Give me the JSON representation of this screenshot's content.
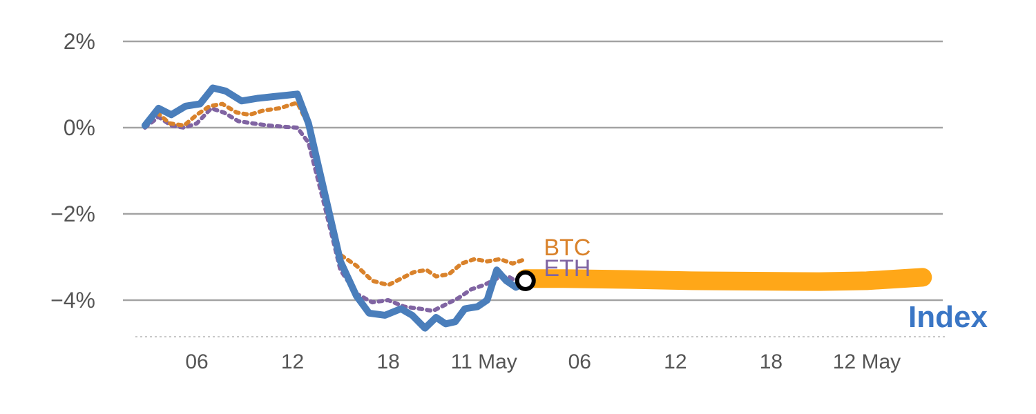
{
  "chart_data": {
    "type": "line",
    "title": "",
    "xlabel": "",
    "ylabel": "",
    "grid": "horizontal",
    "legend_position": "inline-annotations",
    "ylim": [
      -5.2,
      2.4
    ],
    "xlim_t_hours": [
      2.75,
      51.5
    ],
    "y_ticks": [
      {
        "label": "2%",
        "value": 2
      },
      {
        "label": "0%",
        "value": 0
      },
      {
        "label": "−2%",
        "value": -2
      },
      {
        "label": "−4%",
        "value": -4
      }
    ],
    "x_ticks": [
      {
        "label": "06",
        "t": 6
      },
      {
        "label": "12",
        "t": 12
      },
      {
        "label": "18",
        "t": 18
      },
      {
        "label": "11 May",
        "t": 24
      },
      {
        "label": "06",
        "t": 30
      },
      {
        "label": "12",
        "t": 36
      },
      {
        "label": "18",
        "t": 42
      },
      {
        "label": "12 May",
        "t": 48
      }
    ],
    "series": [
      {
        "name": "index-projection-band",
        "color": "#FFA718",
        "style": "solid",
        "width": 27,
        "points": [
          [
            26.6,
            -3.5
          ],
          [
            29,
            -3.5
          ],
          [
            33,
            -3.52
          ],
          [
            37,
            -3.55
          ],
          [
            41,
            -3.56
          ],
          [
            45,
            -3.57
          ],
          [
            48,
            -3.55
          ],
          [
            51.5,
            -3.47
          ]
        ]
      },
      {
        "name": "ETH",
        "color": "#8064A2",
        "style": "dotted",
        "width": 6,
        "points": [
          [
            2.75,
            0.0
          ],
          [
            3.6,
            0.25
          ],
          [
            4.4,
            0.05
          ],
          [
            5.2,
            0.0
          ],
          [
            6.0,
            0.1
          ],
          [
            6.9,
            0.45
          ],
          [
            7.7,
            0.35
          ],
          [
            8.6,
            0.15
          ],
          [
            9.5,
            0.1
          ],
          [
            10.5,
            0.05
          ],
          [
            11.5,
            0.02
          ],
          [
            12.3,
            0.0
          ],
          [
            13.0,
            -0.35
          ],
          [
            14.0,
            -1.8
          ],
          [
            15.0,
            -3.3
          ],
          [
            16.0,
            -3.85
          ],
          [
            17.0,
            -4.05
          ],
          [
            18.0,
            -4.0
          ],
          [
            19.0,
            -4.15
          ],
          [
            20.0,
            -4.2
          ],
          [
            20.8,
            -4.25
          ],
          [
            21.6,
            -4.1
          ],
          [
            22.4,
            -3.95
          ],
          [
            23.2,
            -3.75
          ],
          [
            24.0,
            -3.65
          ],
          [
            24.8,
            -3.5
          ],
          [
            25.5,
            -3.45
          ],
          [
            26.0,
            -3.55
          ],
          [
            26.6,
            -3.5
          ]
        ]
      },
      {
        "name": "BTC",
        "color": "#D9822B",
        "style": "dotted",
        "width": 6,
        "points": [
          [
            2.75,
            0.1
          ],
          [
            3.5,
            0.35
          ],
          [
            4.3,
            0.1
          ],
          [
            5.2,
            0.05
          ],
          [
            6.0,
            0.3
          ],
          [
            6.8,
            0.5
          ],
          [
            7.6,
            0.55
          ],
          [
            8.5,
            0.35
          ],
          [
            9.3,
            0.3
          ],
          [
            10.2,
            0.4
          ],
          [
            11.2,
            0.45
          ],
          [
            12.3,
            0.58
          ],
          [
            13.0,
            0.05
          ],
          [
            14.0,
            -1.6
          ],
          [
            15.0,
            -2.95
          ],
          [
            16.0,
            -3.2
          ],
          [
            17.0,
            -3.55
          ],
          [
            18.0,
            -3.65
          ],
          [
            18.8,
            -3.5
          ],
          [
            19.6,
            -3.35
          ],
          [
            20.4,
            -3.3
          ],
          [
            21.0,
            -3.45
          ],
          [
            21.8,
            -3.4
          ],
          [
            22.6,
            -3.15
          ],
          [
            23.4,
            -3.05
          ],
          [
            24.2,
            -3.1
          ],
          [
            25.0,
            -3.05
          ],
          [
            25.8,
            -3.15
          ],
          [
            26.6,
            -3.05
          ]
        ]
      },
      {
        "name": "Index",
        "color": "#4A7EBB",
        "style": "solid",
        "width": 10,
        "points": [
          [
            2.75,
            0.05
          ],
          [
            3.6,
            0.45
          ],
          [
            4.4,
            0.3
          ],
          [
            5.3,
            0.5
          ],
          [
            6.2,
            0.55
          ],
          [
            7.0,
            0.92
          ],
          [
            7.8,
            0.85
          ],
          [
            8.8,
            0.62
          ],
          [
            9.8,
            0.68
          ],
          [
            10.8,
            0.72
          ],
          [
            11.6,
            0.75
          ],
          [
            12.3,
            0.78
          ],
          [
            13.0,
            0.1
          ],
          [
            14.0,
            -1.5
          ],
          [
            15.0,
            -3.1
          ],
          [
            16.0,
            -3.9
          ],
          [
            16.8,
            -4.3
          ],
          [
            17.8,
            -4.35
          ],
          [
            18.8,
            -4.2
          ],
          [
            19.5,
            -4.35
          ],
          [
            20.3,
            -4.65
          ],
          [
            21.0,
            -4.4
          ],
          [
            21.6,
            -4.55
          ],
          [
            22.2,
            -4.5
          ],
          [
            22.8,
            -4.2
          ],
          [
            23.6,
            -4.15
          ],
          [
            24.2,
            -4.0
          ],
          [
            24.8,
            -3.3
          ],
          [
            25.4,
            -3.55
          ],
          [
            26.0,
            -3.7
          ],
          [
            26.6,
            -3.6
          ]
        ]
      }
    ],
    "marker": {
      "name": "current-point-marker",
      "t": 26.6,
      "pct": -3.55,
      "shape": "circle",
      "radius": 12,
      "stroke": "#000000",
      "stroke_width": 6,
      "fill": "#ffffff"
    },
    "annotations": [
      {
        "text": "BTC",
        "color": "#D9822B",
        "t": 27.75,
        "pct": -2.96,
        "size": 34,
        "weight": "normal"
      },
      {
        "text": "ETH",
        "color": "#8064A2",
        "t": 27.75,
        "pct": -3.44,
        "size": 34,
        "weight": "normal"
      },
      {
        "text": "Index",
        "color": "#3A76C5",
        "t": 50.6,
        "pct": -4.62,
        "size": 44,
        "weight": "bold"
      }
    ],
    "colors": {
      "grid": "#a3a3a3",
      "axis": "#b5b5b5",
      "tick_text": "#555555",
      "background": "#ffffff"
    }
  }
}
